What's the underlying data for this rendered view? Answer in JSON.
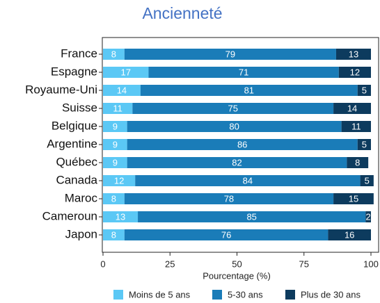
{
  "chart_data": {
    "type": "stacked-barh",
    "title": "Ancienneté",
    "categories": [
      "France",
      "Espagne",
      "Royaume-Uni",
      "Suisse",
      "Belgique",
      "Argentine",
      "Québec",
      "Canada",
      "Maroc",
      "Cameroun",
      "Japon"
    ],
    "series": [
      {
        "name": "Moins de 5 ans",
        "color": "#5bc8f5",
        "values": [
          8,
          17,
          14,
          11,
          9,
          9,
          9,
          12,
          8,
          13,
          8
        ]
      },
      {
        "name": "5-30 ans",
        "color": "#1a7cb8",
        "values": [
          79,
          71,
          81,
          75,
          80,
          86,
          82,
          84,
          78,
          85,
          76
        ]
      },
      {
        "name": "Plus de 30 ans",
        "color": "#0d3b5e",
        "values": [
          13,
          12,
          5,
          14,
          11,
          5,
          8,
          5,
          15,
          2,
          16
        ]
      }
    ],
    "xlabel": "Pourcentage (%)",
    "xlim": [
      0,
      100
    ],
    "xticks": [
      0,
      25,
      50,
      75,
      100
    ],
    "legend": "bottom"
  }
}
